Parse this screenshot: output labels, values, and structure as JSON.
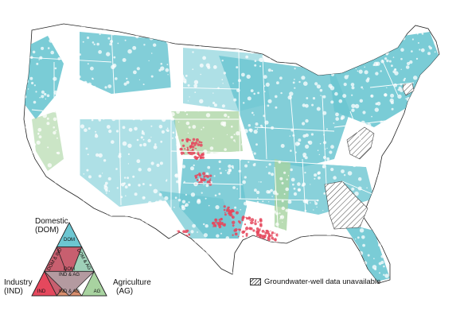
{
  "map": {
    "colors": {
      "domestic": "#6cc6d1",
      "industry": "#e5485d",
      "agriculture": "#a8d3a0",
      "dom_ind": "#c85f6f",
      "dom_ag": "#9fd0b8",
      "ind_ag": "#d98d6c",
      "all_three": "#b49aa0",
      "state_border": "#ffffff",
      "land_bg": "#ffffff",
      "outline": "#222222"
    },
    "no_data_states": [
      "Georgia",
      "West Virginia",
      "Connecticut"
    ]
  },
  "legend": {
    "triangle": {
      "domestic_label": "Domestic",
      "domestic_abbr": "(DOM)",
      "industry_label": "Industry",
      "industry_abbr": "(IND)",
      "agriculture_label": "Agriculture",
      "agriculture_abbr": "(AG)",
      "cells": {
        "dom": "DOM",
        "dom_ind": "DOM & IND",
        "dom_ag": "DOM & AG",
        "all_line1": "DOM",
        "all_line2": "IND & AG",
        "ind": "IND",
        "ind_ag": "IND & AG",
        "ag": "AG"
      }
    },
    "no_data": "Groundwater-well data unavailable"
  }
}
